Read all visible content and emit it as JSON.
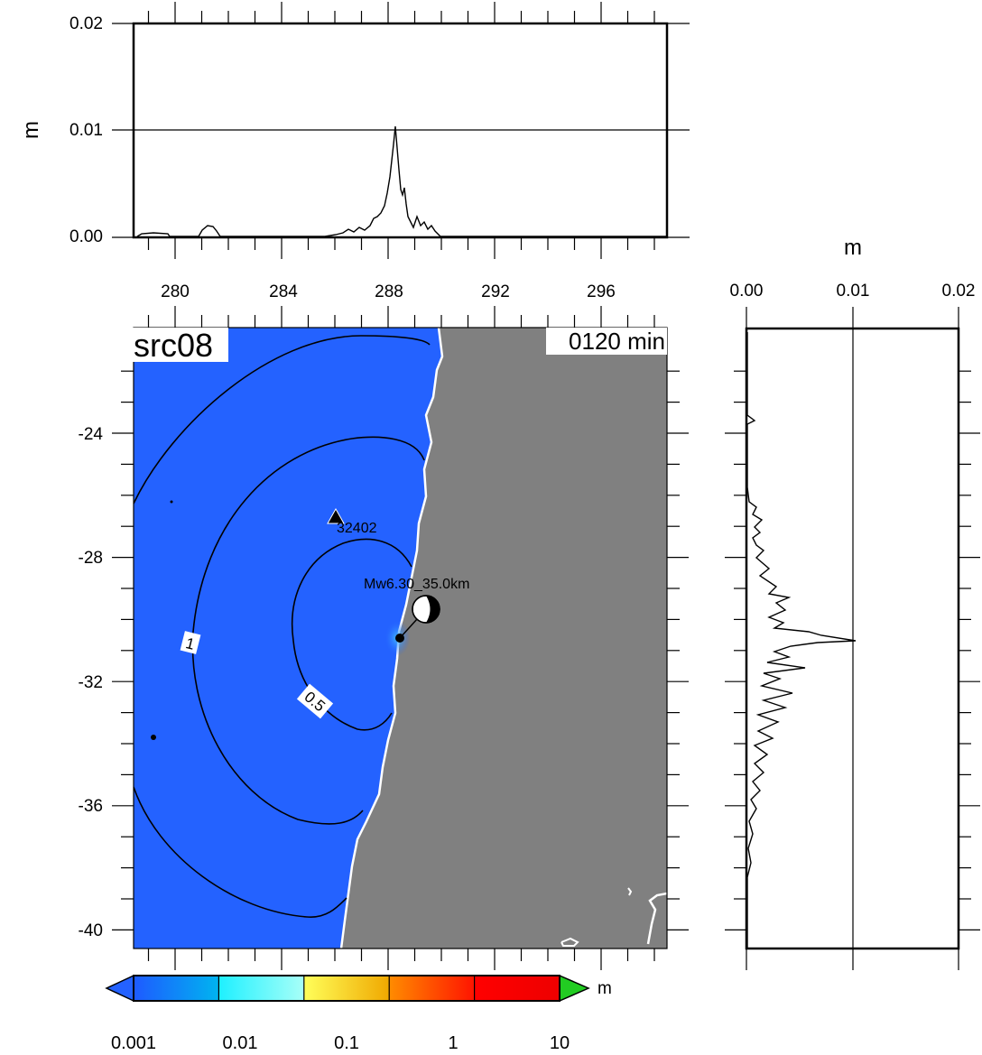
{
  "source_label": "src08",
  "time_label": "0120 min",
  "unit_label": "m",
  "colors": {
    "ocean": "#2462FF",
    "land": "#808080",
    "coast": "#ffffff",
    "contour": "#000000",
    "frame": "#000000",
    "epicenter_glow": "#3FB4FF"
  },
  "map": {
    "x_ticks": [
      "280",
      "284",
      "288",
      "292",
      "296"
    ],
    "y_ticks": [
      "-24",
      "-28",
      "-32",
      "-36",
      "-40"
    ],
    "contour_labels": [
      "1",
      "0.5"
    ],
    "station": {
      "label": "32402",
      "icon": "triangle-icon"
    },
    "event": {
      "label": "Mw6.30_35.0km",
      "icon": "beachball-icon"
    }
  },
  "top_profile": {
    "y_ticks": [
      "0.00",
      "0.01",
      "0.02"
    ],
    "ylabel": "m"
  },
  "right_profile": {
    "x_ticks": [
      "0.00",
      "0.01",
      "0.02"
    ],
    "xlabel": "m"
  },
  "colorbar": {
    "labels": [
      "0.001",
      "0.01",
      "0.1",
      "1",
      "10"
    ],
    "unit": "m",
    "bins": [
      {
        "from": "#1E5AFF",
        "to": "#00B4F0"
      },
      {
        "from": "#1EF0FF",
        "to": "#A8FFF8"
      },
      {
        "from": "#FFFF5A",
        "to": "#F0A800"
      },
      {
        "from": "#FF8C00",
        "to": "#FF1400"
      },
      {
        "from": "#FF0000",
        "to": "#EE0000"
      }
    ],
    "under_color": "#2462FF",
    "over_color": "#22CC22"
  }
}
